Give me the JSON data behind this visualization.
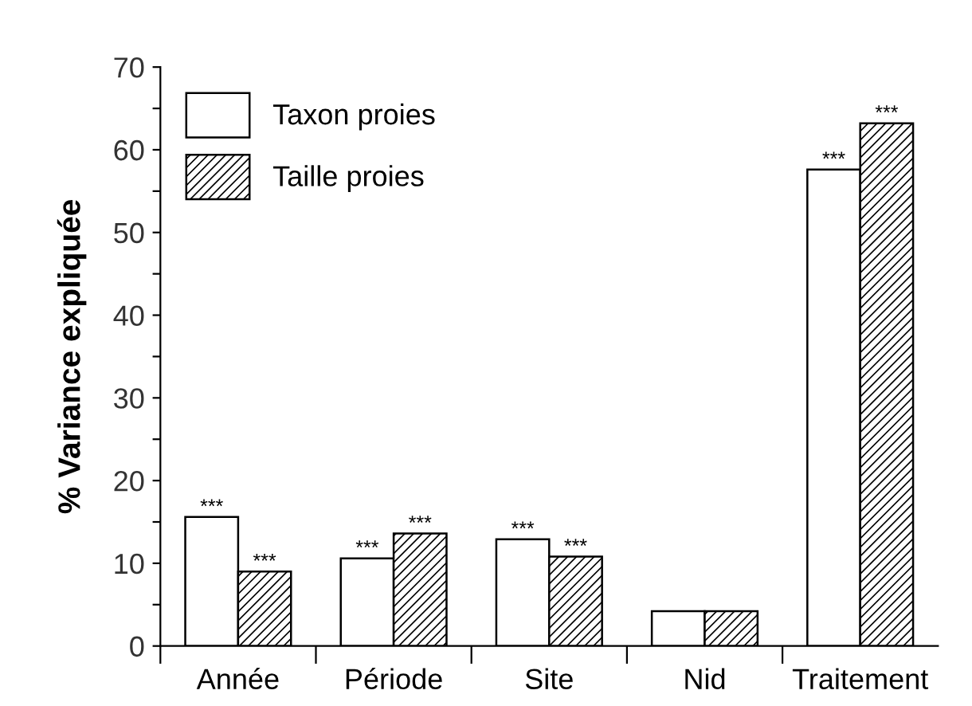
{
  "chart_data": {
    "type": "bar",
    "ylabel": "% Variance expliquée",
    "categories": [
      "Année",
      "Période",
      "Site",
      "Nid",
      "Traitement"
    ],
    "series": [
      {
        "name": "Taxon proies",
        "color": "#ffffff",
        "values": [
          15.6,
          10.6,
          12.9,
          4.2,
          57.6
        ],
        "value_labels": [
          "***",
          "***",
          "***",
          null,
          "***"
        ]
      },
      {
        "name": "Taille proies",
        "color": "#000000",
        "values": [
          9.0,
          13.6,
          10.8,
          4.2,
          63.2
        ],
        "value_labels": [
          "***",
          "***",
          "***",
          null,
          "***"
        ]
      }
    ],
    "ylim": [
      0,
      70
    ],
    "yticks": [
      0,
      {
        "value": 5,
        "label": null
      },
      10,
      {
        "value": 15,
        "label": null
      },
      20,
      {
        "value": 25,
        "label": null
      },
      30,
      {
        "value": 35,
        "label": null
      },
      40,
      {
        "value": 45,
        "label": null
      },
      50,
      {
        "value": 55,
        "label": null
      },
      60,
      {
        "value": 65,
        "label": null
      },
      70
    ],
    "grid": false,
    "legend": "top left"
  }
}
